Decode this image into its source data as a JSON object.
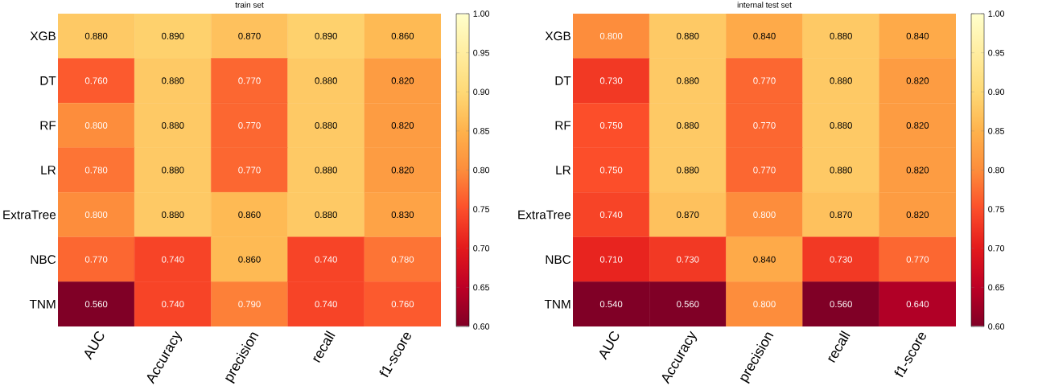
{
  "chart_data": [
    {
      "type": "heatmap",
      "title": "train set",
      "categories": [
        "AUC",
        "Accuracy",
        "precision",
        "recall",
        "f1-score"
      ],
      "y_categories": [
        "XGB",
        "DT",
        "RF",
        "LR",
        "ExtraTree",
        "NBC",
        "TNM"
      ],
      "cells": [
        [
          0.88,
          0.89,
          0.87,
          0.89,
          0.86
        ],
        [
          0.76,
          0.88,
          0.77,
          0.88,
          0.82
        ],
        [
          0.8,
          0.88,
          0.77,
          0.88,
          0.82
        ],
        [
          0.78,
          0.88,
          0.77,
          0.88,
          0.82
        ],
        [
          0.8,
          0.88,
          0.86,
          0.88,
          0.83
        ],
        [
          0.77,
          0.74,
          0.86,
          0.74,
          0.78
        ],
        [
          0.56,
          0.74,
          0.79,
          0.74,
          0.76
        ]
      ],
      "cell_labels": [
        [
          "0.880",
          "0.890",
          "0.870",
          "0.890",
          "0.860"
        ],
        [
          "0.760",
          "0.880",
          "0.770",
          "0.880",
          "0.820"
        ],
        [
          "0.800",
          "0.880",
          "0.770",
          "0.880",
          "0.820"
        ],
        [
          "0.780",
          "0.880",
          "0.770",
          "0.880",
          "0.820"
        ],
        [
          "0.800",
          "0.880",
          "0.860",
          "0.880",
          "0.830"
        ],
        [
          "0.770",
          "0.740",
          "0.860",
          "0.740",
          "0.780"
        ],
        [
          "0.560",
          "0.740",
          "0.790",
          "0.740",
          "0.760"
        ]
      ],
      "clim": [
        0.6,
        1.0
      ],
      "cticks": [
        {
          "value": 0.6,
          "label": "0.60"
        },
        {
          "value": 0.65,
          "label": "0.65"
        },
        {
          "value": 0.7,
          "label": "0.70"
        },
        {
          "value": 0.75,
          "label": "0.75"
        },
        {
          "value": 0.8,
          "label": "0.80"
        },
        {
          "value": 0.85,
          "label": "0.85"
        },
        {
          "value": 0.9,
          "label": "0.90"
        },
        {
          "value": 0.95,
          "label": "0.95"
        },
        {
          "value": 1.0,
          "label": "1.00"
        }
      ]
    },
    {
      "type": "heatmap",
      "title": "internal test set",
      "categories": [
        "AUC",
        "Accuracy",
        "precision",
        "recall",
        "f1-score"
      ],
      "y_categories": [
        "XGB",
        "DT",
        "RF",
        "LR",
        "ExtraTree",
        "NBC",
        "TNM"
      ],
      "cells": [
        [
          0.8,
          0.88,
          0.84,
          0.88,
          0.84
        ],
        [
          0.73,
          0.88,
          0.77,
          0.88,
          0.82
        ],
        [
          0.75,
          0.88,
          0.77,
          0.88,
          0.82
        ],
        [
          0.75,
          0.88,
          0.77,
          0.88,
          0.82
        ],
        [
          0.74,
          0.87,
          0.8,
          0.87,
          0.82
        ],
        [
          0.71,
          0.73,
          0.84,
          0.73,
          0.77
        ],
        [
          0.54,
          0.56,
          0.8,
          0.56,
          0.64
        ]
      ],
      "cell_labels": [
        [
          "0.800",
          "0.880",
          "0.840",
          "0.880",
          "0.840"
        ],
        [
          "0.730",
          "0.880",
          "0.770",
          "0.880",
          "0.820"
        ],
        [
          "0.750",
          "0.880",
          "0.770",
          "0.880",
          "0.820"
        ],
        [
          "0.750",
          "0.880",
          "0.770",
          "0.880",
          "0.820"
        ],
        [
          "0.740",
          "0.870",
          "0.800",
          "0.870",
          "0.820"
        ],
        [
          "0.710",
          "0.730",
          "0.840",
          "0.730",
          "0.770"
        ],
        [
          "0.540",
          "0.560",
          "0.800",
          "0.560",
          "0.640"
        ]
      ],
      "clim": [
        0.6,
        1.0
      ],
      "cticks": [
        {
          "value": 0.6,
          "label": "0.60"
        },
        {
          "value": 0.65,
          "label": "0.65"
        },
        {
          "value": 0.7,
          "label": "0.70"
        },
        {
          "value": 0.75,
          "label": "0.75"
        },
        {
          "value": 0.8,
          "label": "0.80"
        },
        {
          "value": 0.85,
          "label": "0.85"
        },
        {
          "value": 0.9,
          "label": "0.90"
        },
        {
          "value": 0.95,
          "label": "0.95"
        },
        {
          "value": 1.0,
          "label": "1.00"
        }
      ]
    }
  ]
}
